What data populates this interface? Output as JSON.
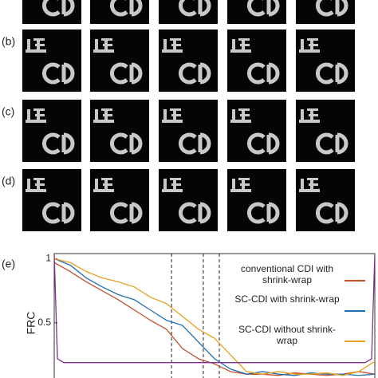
{
  "row_labels": [
    "(b)",
    "(c)",
    "(d)"
  ],
  "chart_data": {
    "type": "line",
    "panel_label": "(e)",
    "ylabel": "FRC",
    "xlim": [
      0,
      100
    ],
    "ylim": [
      0.07,
      1.04
    ],
    "yticks": [
      1,
      0.5
    ],
    "vlines": [
      36.6,
      46.5,
      51.5
    ],
    "x": [
      0,
      5,
      10,
      15,
      20,
      25,
      30,
      35,
      40,
      45,
      50,
      55,
      60,
      65,
      70,
      75,
      80,
      85,
      90,
      95,
      100
    ],
    "series": [
      {
        "name": "conventional CDI with shrink-wrap",
        "color": "#c1502c",
        "values": [
          0.97,
          0.9,
          0.82,
          0.75,
          0.68,
          0.6,
          0.52,
          0.45,
          0.3,
          0.22,
          0.18,
          0.12,
          0.1,
          0.1,
          0.09,
          0.11,
          0.1,
          0.09,
          0.1,
          0.12,
          0.1
        ]
      },
      {
        "name": "SC-CDI with shrink-wrap",
        "color": "#1f6fb5",
        "values": [
          1.0,
          0.95,
          0.85,
          0.78,
          0.72,
          0.68,
          0.6,
          0.52,
          0.48,
          0.35,
          0.22,
          0.14,
          0.1,
          0.12,
          0.1,
          0.09,
          0.11,
          0.1,
          0.1,
          0.09,
          0.1
        ]
      },
      {
        "name": "SC-CDI without shrink-wrap",
        "color": "#e8a020",
        "values": [
          1.0,
          0.97,
          0.9,
          0.85,
          0.82,
          0.78,
          0.7,
          0.65,
          0.55,
          0.45,
          0.38,
          0.25,
          0.12,
          0.1,
          0.12,
          0.1,
          0.1,
          0.11,
          0.09,
          0.12,
          0.2
        ]
      },
      {
        "color": "#7e2f8e",
        "x": [
          0,
          1,
          3,
          97,
          99,
          100
        ],
        "values": [
          1.04,
          0.22,
          0.19,
          0.19,
          0.22,
          1.04
        ]
      }
    ]
  }
}
